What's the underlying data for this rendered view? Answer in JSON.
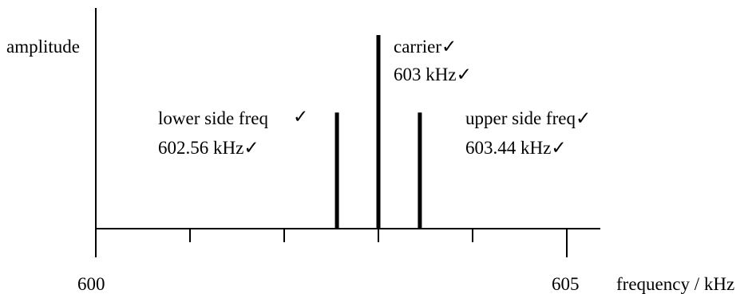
{
  "chart_data": {
    "type": "bar",
    "title": "",
    "xlabel": "frequency / kHz",
    "ylabel": "amplitude",
    "xlim": [
      600,
      605
    ],
    "x_tick_labels": [
      "600",
      "605"
    ],
    "series": [
      {
        "label_line1": "lower side freq",
        "label_line2": "602.56 kHz✓",
        "check": "✓",
        "x": 602.56,
        "relative_amplitude": 0.6
      },
      {
        "label_line1": "carrier✓",
        "label_line2": "603 kHz✓",
        "check": "",
        "x": 603,
        "relative_amplitude": 1.0
      },
      {
        "label_line1": "upper side freq✓",
        "label_line2": "603.44 kHz✓",
        "check": "",
        "x": 603.44,
        "relative_amplitude": 0.6
      }
    ]
  }
}
